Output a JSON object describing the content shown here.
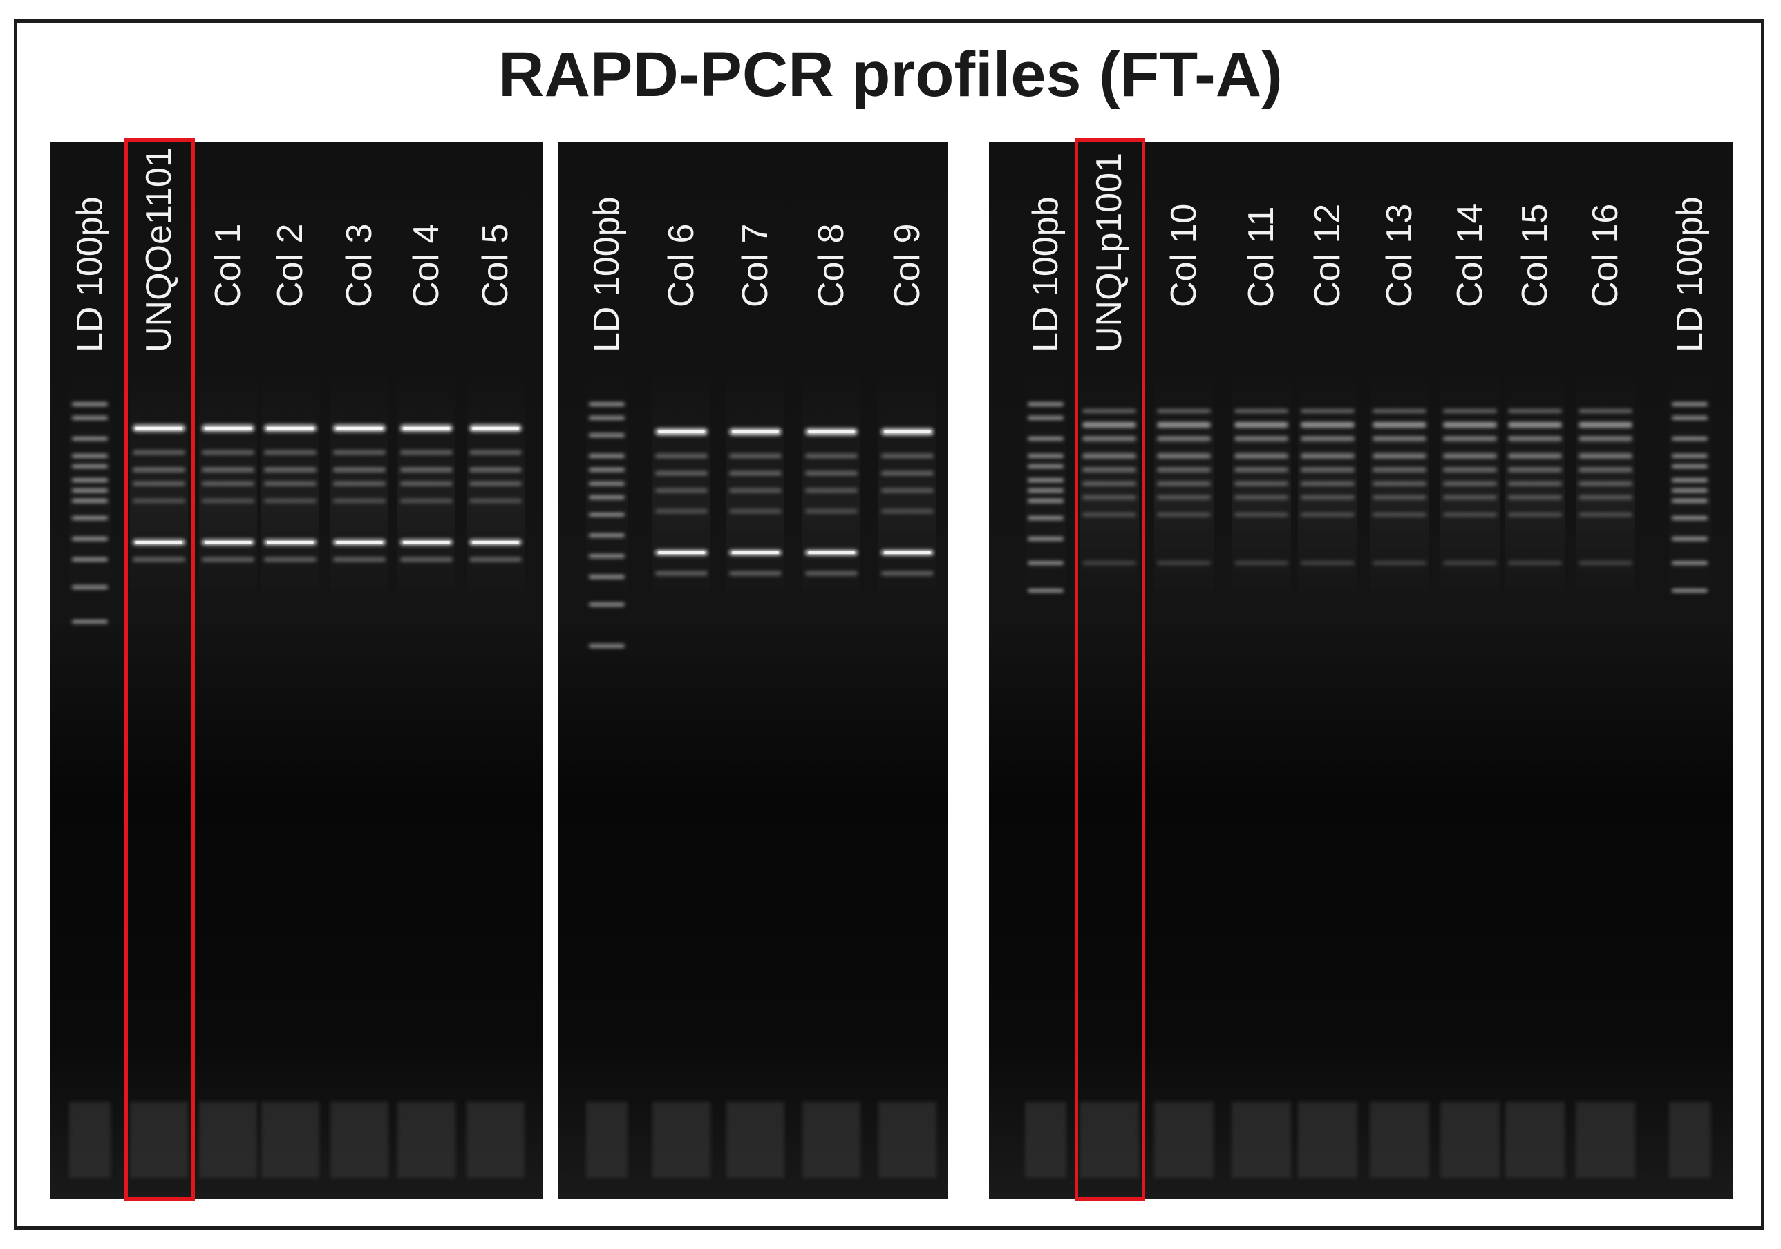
{
  "figure": {
    "title": "RAPD-PCR profiles (FT-A)",
    "colors": {
      "gel_background": "#0d0d0d",
      "label_text": "#f2f2f2",
      "highlight_box": "#e3161d",
      "frame": "#1c1c1c"
    }
  },
  "panels": [
    {
      "id": "left",
      "lanes": [
        "LD 100pb",
        "UNQOe1101",
        "Col 1",
        "Col 2",
        "Col 3",
        "Col 4",
        "Col 5"
      ],
      "highlighted_lane": "UNQOe1101"
    },
    {
      "id": "middle",
      "lanes": [
        "LD 100pb",
        "Col 6",
        "Col 7",
        "Col 8",
        "Col 9"
      ],
      "highlighted_lane": ""
    },
    {
      "id": "right",
      "lanes": [
        "LD 100pb",
        "UNQLp1001",
        "Col 10",
        "Col 11",
        "Col 12",
        "Col 13",
        "Col 14",
        "Col 15",
        "Col 16",
        "LD 100pb"
      ],
      "highlighted_lane": "UNQLp1001"
    }
  ]
}
